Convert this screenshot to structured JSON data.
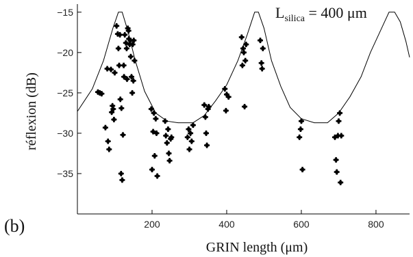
{
  "chart_data": {
    "type": "scatter",
    "panel_label": "(b)",
    "xlabel": "GRIN length (μm)",
    "ylabel": "réflexion (dB)",
    "xlim": [
      0,
      890
    ],
    "ylim": [
      -40,
      -14
    ],
    "x_ticks": [
      200,
      400,
      600,
      800
    ],
    "y_ticks": [
      -15,
      -20,
      -25,
      -30,
      -35
    ],
    "grid": false,
    "annotation": {
      "lhs": "L",
      "subscript": "silica",
      "rhs": " = 400 μm"
    },
    "series": [
      {
        "type": "line",
        "points": [
          [
            0,
            -27.3
          ],
          [
            40,
            -24.5
          ],
          [
            70,
            -21.0
          ],
          [
            95,
            -17.0
          ],
          [
            110,
            -15.0
          ],
          [
            120,
            -15.0
          ],
          [
            135,
            -17.3
          ],
          [
            155,
            -21.0
          ],
          [
            180,
            -24.8
          ],
          [
            210,
            -27.5
          ],
          [
            240,
            -28.5
          ],
          [
            270,
            -28.7
          ],
          [
            310,
            -28.7
          ],
          [
            340,
            -27.8
          ],
          [
            370,
            -26.0
          ],
          [
            400,
            -24.0
          ],
          [
            430,
            -21.0
          ],
          [
            455,
            -17.8
          ],
          [
            475,
            -15.0
          ],
          [
            485,
            -15.0
          ],
          [
            500,
            -17.0
          ],
          [
            520,
            -21.0
          ],
          [
            545,
            -24.2
          ],
          [
            570,
            -26.8
          ],
          [
            600,
            -28.2
          ],
          [
            635,
            -28.7
          ],
          [
            670,
            -28.7
          ],
          [
            700,
            -27.5
          ],
          [
            730,
            -25.5
          ],
          [
            760,
            -23.0
          ],
          [
            785,
            -20.0
          ],
          [
            815,
            -17.0
          ],
          [
            835,
            -15.0
          ],
          [
            850,
            -15.0
          ],
          [
            865,
            -16.2
          ],
          [
            880,
            -18.6
          ],
          [
            890,
            -20.6
          ]
        ]
      },
      {
        "type": "scatter",
        "points": [
          [
            55,
            -24.9
          ],
          [
            60,
            -25.0
          ],
          [
            65,
            -25.1
          ],
          [
            75,
            -29.3
          ],
          [
            80,
            -22.0
          ],
          [
            82,
            -31.0
          ],
          [
            85,
            -32.0
          ],
          [
            90,
            -22.1
          ],
          [
            92,
            -27.4
          ],
          [
            94,
            -26.6
          ],
          [
            96,
            -27.0
          ],
          [
            98,
            -28.3
          ],
          [
            100,
            -22.5
          ],
          [
            105,
            -16.7
          ],
          [
            108,
            -17.7
          ],
          [
            110,
            -19.5
          ],
          [
            112,
            -21.6
          ],
          [
            114,
            -17.8
          ],
          [
            115,
            -25.8
          ],
          [
            117,
            -35.0
          ],
          [
            118,
            -26.9
          ],
          [
            120,
            -35.8
          ],
          [
            122,
            -30.2
          ],
          [
            124,
            -21.6
          ],
          [
            125,
            -23.0
          ],
          [
            127,
            -17.8
          ],
          [
            130,
            -18.8
          ],
          [
            132,
            -19.5
          ],
          [
            133,
            -23.3
          ],
          [
            135,
            -17.0
          ],
          [
            137,
            -17.3
          ],
          [
            138,
            -18.3
          ],
          [
            140,
            -19.0
          ],
          [
            142,
            -18.5
          ],
          [
            143,
            -20.5
          ],
          [
            145,
            -23.0
          ],
          [
            147,
            -25.0
          ],
          [
            148,
            -19.0
          ],
          [
            150,
            -23.5
          ],
          [
            151,
            -18.5
          ],
          [
            153,
            -21.0
          ],
          [
            198,
            -27.0
          ],
          [
            200,
            -34.5
          ],
          [
            203,
            -29.8
          ],
          [
            205,
            -27.5
          ],
          [
            207,
            -32.8
          ],
          [
            210,
            -28.2
          ],
          [
            212,
            -30.0
          ],
          [
            214,
            -35.3
          ],
          [
            235,
            -28.5
          ],
          [
            237,
            -30.3
          ],
          [
            240,
            -31.2
          ],
          [
            243,
            -29.5
          ],
          [
            245,
            -32.5
          ],
          [
            247,
            -33.4
          ],
          [
            250,
            -30.7
          ],
          [
            252,
            -30.5
          ],
          [
            295,
            -30.5
          ],
          [
            298,
            -29.5
          ],
          [
            300,
            -32.0
          ],
          [
            303,
            -30.0
          ],
          [
            306,
            -31.0
          ],
          [
            310,
            -29.0
          ],
          [
            340,
            -26.5
          ],
          [
            343,
            -28.0
          ],
          [
            345,
            -30.0
          ],
          [
            347,
            -31.5
          ],
          [
            350,
            -27.0
          ],
          [
            352,
            -26.7
          ],
          [
            395,
            -24.5
          ],
          [
            398,
            -27.2
          ],
          [
            400,
            -25.2
          ],
          [
            405,
            -25.5
          ],
          [
            440,
            -18.1
          ],
          [
            442,
            -21.6
          ],
          [
            444,
            -19.5
          ],
          [
            446,
            -20.0
          ],
          [
            448,
            -26.7
          ],
          [
            450,
            -21.0
          ],
          [
            452,
            -19.0
          ],
          [
            490,
            -18.5
          ],
          [
            493,
            -21.3
          ],
          [
            495,
            -22.0
          ],
          [
            497,
            -19.5
          ],
          [
            595,
            -30.5
          ],
          [
            598,
            -29.5
          ],
          [
            600,
            -28.5
          ],
          [
            603,
            -34.5
          ],
          [
            690,
            -30.5
          ],
          [
            693,
            -33.3
          ],
          [
            695,
            -34.8
          ],
          [
            698,
            -30.3
          ],
          [
            700,
            -28.5
          ],
          [
            703,
            -27.5
          ],
          [
            705,
            -36.1
          ],
          [
            707,
            -30.3
          ]
        ]
      }
    ]
  }
}
